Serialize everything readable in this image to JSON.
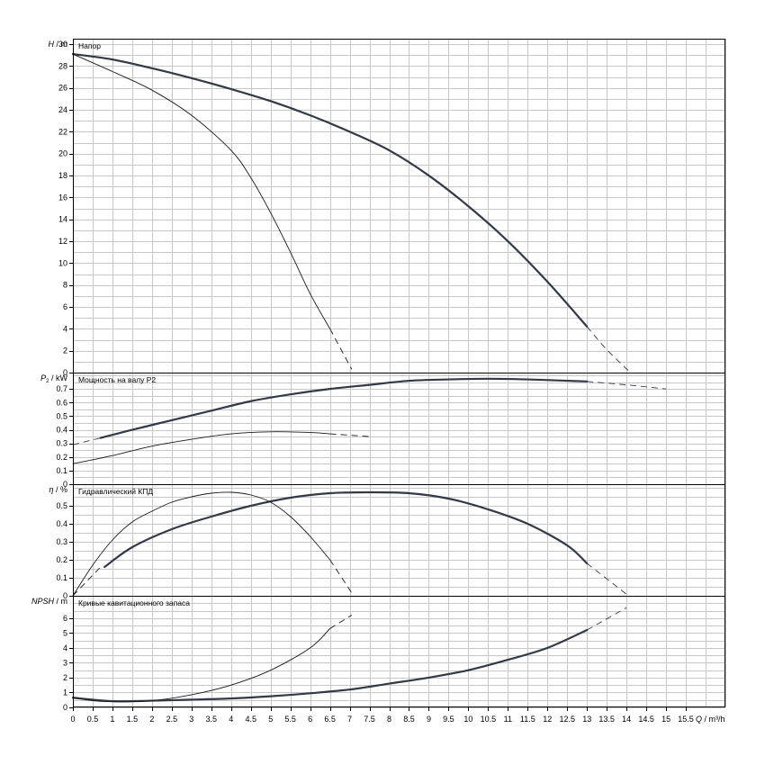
{
  "chart_data": {
    "type": "line",
    "x_axis": {
      "label": "Q / m³/h",
      "ticks": [
        "0",
        "0.5",
        "1",
        "1.5",
        "2",
        "2.5",
        "3",
        "3.5",
        "4",
        "4.5",
        "5",
        "5.5",
        "6",
        "6.5",
        "7",
        "7.5",
        "8",
        "8.5",
        "9",
        "9.5",
        "10",
        "10.5",
        "11",
        "11.5",
        "12",
        "12.5",
        "13",
        "13.5",
        "14",
        "14.5",
        "15",
        "15.5"
      ],
      "range": [
        0,
        16.5
      ],
      "grid": true
    },
    "panels": [
      {
        "id": "head",
        "title": "Напор",
        "ylabel_sym": "H",
        "ylabel_unit": " / m",
        "ylim": [
          0,
          30.5
        ],
        "yticks": [
          "0",
          "2",
          "4",
          "6",
          "8",
          "10",
          "12",
          "14",
          "16",
          "18",
          "20",
          "22",
          "24",
          "26",
          "28",
          "30"
        ],
        "series": [
          {
            "solid": [
              [
                0,
                29.1
              ],
              [
                1,
                28.6
              ],
              [
                2,
                27.8
              ],
              [
                3,
                26.9
              ],
              [
                4,
                25.9
              ],
              [
                5,
                24.8
              ],
              [
                6,
                23.5
              ],
              [
                7,
                22.0
              ],
              [
                8,
                20.3
              ],
              [
                9,
                18.0
              ],
              [
                10,
                15.2
              ],
              [
                11,
                12.0
              ],
              [
                12,
                8.3
              ],
              [
                13,
                4.2
              ]
            ],
            "dashed": [
              [
                13,
                4.2
              ],
              [
                13.5,
                2.1
              ],
              [
                14.1,
                0
              ]
            ],
            "weight": "heavy"
          },
          {
            "solid": [
              [
                0,
                29.1
              ],
              [
                1,
                27.5
              ],
              [
                2,
                25.8
              ],
              [
                3,
                23.5
              ],
              [
                4,
                20.3
              ],
              [
                4.5,
                17.8
              ],
              [
                5,
                14.6
              ],
              [
                5.5,
                11.0
              ],
              [
                6,
                7.2
              ],
              [
                6.5,
                4.0
              ]
            ],
            "dashed": [
              [
                6.5,
                4.0
              ],
              [
                7.05,
                0.3
              ]
            ],
            "weight": "light"
          }
        ]
      },
      {
        "id": "power",
        "title": "Мощность на валу P2",
        "ylabel_sym": "P",
        "ylabel_sub": "2",
        "ylabel_unit": " / kW",
        "ylim": [
          0,
          0.82
        ],
        "yticks": [
          "0",
          "0.1",
          "0.2",
          "0.3",
          "0.4",
          "0.5",
          "0.6",
          "0.7"
        ],
        "series": [
          {
            "solid": [
              [
                0.7,
                0.34
              ],
              [
                1.5,
                0.4
              ],
              [
                2.5,
                0.47
              ],
              [
                3.5,
                0.54
              ],
              [
                4.5,
                0.61
              ],
              [
                5.5,
                0.66
              ],
              [
                6.5,
                0.7
              ],
              [
                7.5,
                0.73
              ],
              [
                8.5,
                0.76
              ],
              [
                9.5,
                0.77
              ],
              [
                10.5,
                0.775
              ],
              [
                11.5,
                0.77
              ],
              [
                12.5,
                0.76
              ],
              [
                13,
                0.755
              ]
            ],
            "dashed": [
              [
                0,
                0.29
              ],
              [
                0.7,
                0.34
              ]
            ],
            "dashed2": [
              [
                13,
                0.755
              ],
              [
                14,
                0.73
              ],
              [
                15,
                0.7
              ]
            ],
            "weight": "heavy"
          },
          {
            "solid": [
              [
                0,
                0.15
              ],
              [
                1,
                0.21
              ],
              [
                2,
                0.28
              ],
              [
                3,
                0.33
              ],
              [
                4,
                0.37
              ],
              [
                5,
                0.385
              ],
              [
                6,
                0.38
              ],
              [
                6.5,
                0.37
              ]
            ],
            "dashed": [
              [
                6.5,
                0.37
              ],
              [
                7.5,
                0.35
              ]
            ],
            "weight": "light"
          }
        ]
      },
      {
        "id": "eff",
        "title": "Гидравлический КПД",
        "ylabel_sym": "η",
        "ylabel_unit": " / %",
        "ylim": [
          0,
          0.62
        ],
        "yticks": [
          "0",
          "0.1",
          "0.2",
          "0.3",
          "0.4",
          "0.5"
        ],
        "series": [
          {
            "solid": [
              [
                0.8,
                0.16
              ],
              [
                1.5,
                0.27
              ],
              [
                2.5,
                0.37
              ],
              [
                3.5,
                0.44
              ],
              [
                4.5,
                0.5
              ],
              [
                5.5,
                0.545
              ],
              [
                6.5,
                0.57
              ],
              [
                7.5,
                0.575
              ],
              [
                8.5,
                0.57
              ],
              [
                9.5,
                0.54
              ],
              [
                10.5,
                0.48
              ],
              [
                11.5,
                0.4
              ],
              [
                12.5,
                0.28
              ],
              [
                13,
                0.18
              ]
            ],
            "dashed": [
              [
                13,
                0.18
              ],
              [
                14.05,
                0
              ]
            ],
            "weight": "heavy"
          },
          {
            "solid": [
              [
                0,
                0
              ],
              [
                0.5,
                0.17
              ],
              [
                1,
                0.31
              ],
              [
                1.5,
                0.41
              ],
              [
                2,
                0.47
              ],
              [
                2.5,
                0.52
              ],
              [
                3,
                0.55
              ],
              [
                3.5,
                0.57
              ],
              [
                4,
                0.575
              ],
              [
                4.5,
                0.56
              ],
              [
                5,
                0.52
              ],
              [
                5.5,
                0.44
              ],
              [
                6,
                0.33
              ],
              [
                6.5,
                0.2
              ]
            ],
            "dashed": [
              [
                6.5,
                0.2
              ],
              [
                7.1,
                0
              ]
            ],
            "dashed2": [
              [
                0,
                0
              ],
              [
                0.7,
                0.16
              ]
            ],
            "weight": "light"
          }
        ]
      },
      {
        "id": "npsh",
        "title": "Кривые кавитационного запаса",
        "ylabel_sym": "NPSH",
        "ylabel_unit": " / m",
        "ylim": [
          0,
          7.5
        ],
        "yticks": [
          "0",
          "1",
          "2",
          "3",
          "4",
          "5",
          "6"
        ],
        "series": [
          {
            "solid": [
              [
                0,
                0.65
              ],
              [
                1,
                0.42
              ],
              [
                2,
                0.45
              ],
              [
                3,
                0.52
              ],
              [
                4,
                0.6
              ],
              [
                5,
                0.75
              ],
              [
                6,
                0.95
              ],
              [
                7,
                1.2
              ],
              [
                8,
                1.6
              ],
              [
                9,
                2.0
              ],
              [
                10,
                2.5
              ],
              [
                11,
                3.2
              ],
              [
                12,
                4.0
              ],
              [
                13,
                5.2
              ]
            ],
            "dashed": [
              [
                13,
                5.2
              ],
              [
                14,
                6.7
              ]
            ],
            "weight": "heavy"
          },
          {
            "solid": [
              [
                0,
                0.65
              ],
              [
                0.5,
                0.45
              ],
              [
                1,
                0.38
              ],
              [
                2,
                0.45
              ],
              [
                3,
                0.85
              ],
              [
                4,
                1.5
              ],
              [
                5,
                2.5
              ],
              [
                6,
                4.0
              ],
              [
                6.5,
                5.3
              ]
            ],
            "dashed": [
              [
                6.5,
                5.3
              ],
              [
                7.05,
                6.2
              ]
            ],
            "weight": "light"
          }
        ]
      }
    ]
  }
}
